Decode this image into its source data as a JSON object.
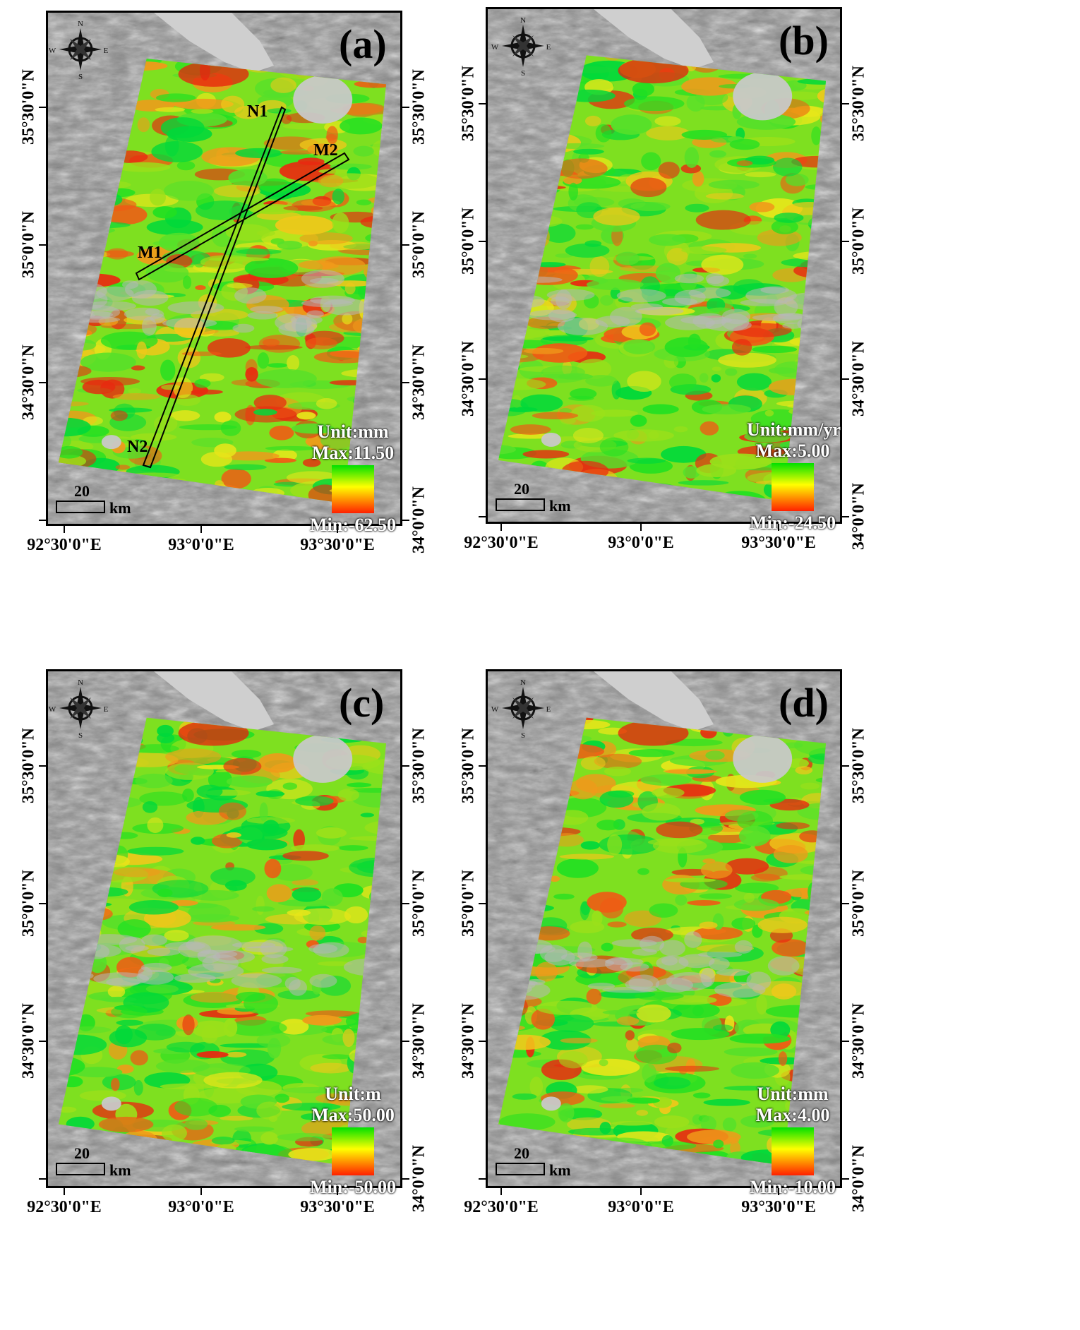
{
  "panels": [
    {
      "label": "(a)",
      "legend": {
        "unit": "Unit:mm",
        "max": "Max:11.50",
        "min": "Min:-62.50"
      },
      "profiles": [
        {
          "name": "N1",
          "endpoint_labels": [
            "N1",
            "N2"
          ]
        },
        {
          "name": "M1",
          "endpoint_labels": [
            "M1",
            "M2"
          ]
        }
      ]
    },
    {
      "label": "(b)",
      "legend": {
        "unit": "Unit:mm/yr",
        "max": "Max:5.00",
        "min": "Min:-24.50"
      },
      "profiles": []
    },
    {
      "label": "(c)",
      "legend": {
        "unit": "Unit:m",
        "max": "Max:50.00",
        "min": "Min:-50.00"
      },
      "profiles": []
    },
    {
      "label": "(d)",
      "legend": {
        "unit": "Unit:mm",
        "max": "Max:4.00",
        "min": "Min:-10.00"
      },
      "profiles": []
    }
  ],
  "axes": {
    "longitude_ticks": [
      "92°30'0\"E",
      "93°0'0\"E",
      "93°30'0\"E"
    ],
    "latitude_ticks": [
      "35°30'0\"N",
      "35°0'0\"N",
      "34°30'0\"N",
      "34°0'0\"N"
    ]
  },
  "scale_bar": {
    "value": "20",
    "unit": "km"
  },
  "compass": {
    "n": "N",
    "s": "S",
    "e": "E",
    "w": "W"
  },
  "colors": {
    "ramp_top": "#00e000",
    "ramp_mid": "#ffff00",
    "ramp_bottom": "#ff2000",
    "hillshade": "#8a8a8a"
  }
}
